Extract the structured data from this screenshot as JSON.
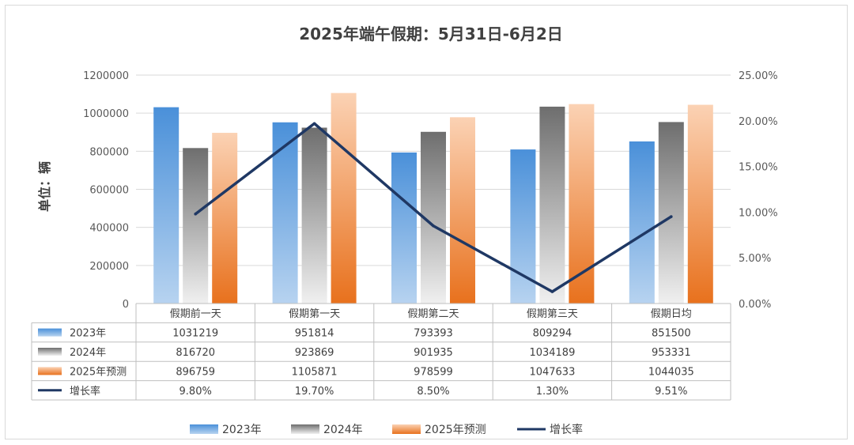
{
  "chart_data": {
    "type": "bar",
    "title": "2025年端午假期：5月31日-6月2日",
    "ylabel": "单位：辆",
    "categories": [
      "假期前一天",
      "假期第一天",
      "假期第二天",
      "假期第三天",
      "假期日均"
    ],
    "ylim": [
      0,
      1200000
    ],
    "y_ticks": [
      "1200000",
      "1000000",
      "800000",
      "600000",
      "400000",
      "200000",
      "0"
    ],
    "y2lim": [
      0,
      25
    ],
    "y2_ticks": [
      "25.00%",
      "20.00%",
      "15.00%",
      "10.00%",
      "5.00%",
      "0.00%"
    ],
    "series": [
      {
        "name": "2023年",
        "type": "bar",
        "color": "#5b9bd5",
        "values": [
          1031219,
          951814,
          793393,
          809294,
          851500
        ],
        "labels": [
          "1031219",
          "951814",
          "793393",
          "809294",
          "851500"
        ]
      },
      {
        "name": "2024年",
        "type": "bar",
        "color": "#7f7f7f",
        "values": [
          816720,
          923869,
          901935,
          1034189,
          953331
        ],
        "labels": [
          "816720",
          "923869",
          "901935",
          "1034189",
          "953331"
        ]
      },
      {
        "name": "2025年预测",
        "type": "bar",
        "color": "#ed7d31",
        "values": [
          896759,
          1105871,
          978599,
          1047633,
          1044035
        ],
        "labels": [
          "896759",
          "1105871",
          "978599",
          "1047633",
          "1044035"
        ]
      },
      {
        "name": "增长率",
        "type": "line",
        "axis": "secondary",
        "color": "#1f3864",
        "values": [
          9.8,
          19.7,
          8.5,
          1.3,
          9.51
        ],
        "labels": [
          "9.80%",
          "19.70%",
          "8.50%",
          "1.30%",
          "9.51%"
        ]
      }
    ],
    "grid": true,
    "legend_position": "bottom",
    "data_table": true
  }
}
